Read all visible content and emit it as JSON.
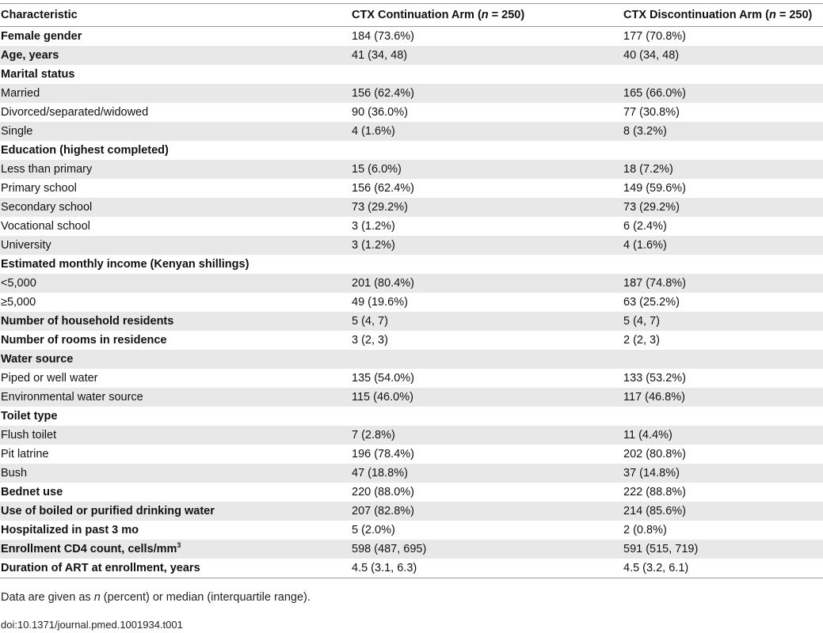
{
  "table": {
    "header": [
      {
        "text": "Characteristic"
      },
      {
        "text": "CTX Continuation Arm (",
        "italic": "n",
        "suffix": " = 250)"
      },
      {
        "text": "CTX Discontinuation Arm (",
        "italic": "n",
        "suffix": " = 250)"
      }
    ],
    "rows": [
      {
        "label": "Female gender",
        "bold": true,
        "c1": "184 (73.6%)",
        "c2": "177 (70.8%)"
      },
      {
        "label": "Age, years",
        "bold": true,
        "c1": "41 (34, 48)",
        "c2": "40 (34, 48)"
      },
      {
        "label": "Marital status",
        "bold": true,
        "c1": "",
        "c2": ""
      },
      {
        "label": "Married",
        "bold": false,
        "c1": "156 (62.4%)",
        "c2": "165 (66.0%)"
      },
      {
        "label": "Divorced/separated/widowed",
        "bold": false,
        "c1": "90 (36.0%)",
        "c2": "77 (30.8%)"
      },
      {
        "label": "Single",
        "bold": false,
        "c1": "4 (1.6%)",
        "c2": "8 (3.2%)"
      },
      {
        "label": "Education (highest completed)",
        "bold": true,
        "c1": "",
        "c2": ""
      },
      {
        "label": "Less than primary",
        "bold": false,
        "c1": "15 (6.0%)",
        "c2": "18 (7.2%)"
      },
      {
        "label": "Primary school",
        "bold": false,
        "c1": "156 (62.4%)",
        "c2": "149 (59.6%)"
      },
      {
        "label": "Secondary school",
        "bold": false,
        "c1": "73 (29.2%)",
        "c2": "73 (29.2%)"
      },
      {
        "label": "Vocational school",
        "bold": false,
        "c1": "3 (1.2%)",
        "c2": "6 (2.4%)"
      },
      {
        "label": "University",
        "bold": false,
        "c1": "3 (1.2%)",
        "c2": "4 (1.6%)"
      },
      {
        "label": "Estimated monthly income (Kenyan shillings)",
        "bold": true,
        "c1": "",
        "c2": ""
      },
      {
        "label": "<5,000",
        "bold": false,
        "c1": "201 (80.4%)",
        "c2": "187 (74.8%)"
      },
      {
        "label": "≥5,000",
        "bold": false,
        "c1": "49 (19.6%)",
        "c2": "63 (25.2%)"
      },
      {
        "label": "Number of household residents",
        "bold": true,
        "c1": "5 (4, 7)",
        "c2": "5 (4, 7)"
      },
      {
        "label": "Number of rooms in residence",
        "bold": true,
        "c1": "3 (2, 3)",
        "c2": "2 (2, 3)"
      },
      {
        "label": "Water source",
        "bold": true,
        "c1": "",
        "c2": ""
      },
      {
        "label": "Piped or well water",
        "bold": false,
        "c1": "135 (54.0%)",
        "c2": "133 (53.2%)"
      },
      {
        "label": "Environmental water source",
        "bold": false,
        "c1": "115 (46.0%)",
        "c2": "117 (46.8%)"
      },
      {
        "label": "Toilet type",
        "bold": true,
        "c1": "",
        "c2": ""
      },
      {
        "label": "Flush toilet",
        "bold": false,
        "c1": "7 (2.8%)",
        "c2": "11 (4.4%)"
      },
      {
        "label": "Pit latrine",
        "bold": false,
        "c1": "196 (78.4%)",
        "c2": "202 (80.8%)"
      },
      {
        "label": "Bush",
        "bold": false,
        "c1": "47 (18.8%)",
        "c2": "37 (14.8%)"
      },
      {
        "label": "Bednet use",
        "bold": true,
        "c1": "220 (88.0%)",
        "c2": "222 (88.8%)"
      },
      {
        "label": "Use of boiled or purified drinking water",
        "bold": true,
        "c1": "207 (82.8%)",
        "c2": "214 (85.6%)"
      },
      {
        "label": "Hospitalized in past 3 mo",
        "bold": true,
        "c1": "5 (2.0%)",
        "c2": "2 (0.8%)"
      },
      {
        "label": "Enrollment CD4 count, cells/mm",
        "sup": "3",
        "bold": true,
        "c1": "598 (487, 695)",
        "c2": "591 (515, 719)"
      },
      {
        "label": "Duration of ART at enrollment, years",
        "bold": true,
        "c1": "4.5 (3.1, 6.3)",
        "c2": "4.5 (3.2, 6.1)"
      }
    ]
  },
  "footnote": {
    "before": "Data are given as ",
    "italic": "n",
    "after": " (percent) or median (interquartile range)."
  },
  "doi": "doi:10.1371/journal.pmed.1001934.t001"
}
